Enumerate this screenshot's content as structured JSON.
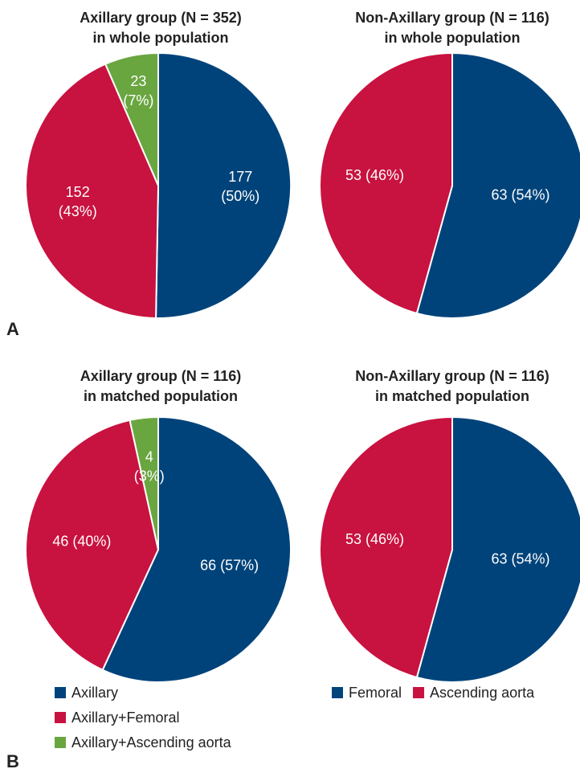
{
  "panels": {
    "a": "A",
    "b": "B"
  },
  "colors": {
    "blue": "#00437a",
    "red": "#c8123f",
    "green": "#6aa640",
    "edge": "#ffffff"
  },
  "chart_data": [
    {
      "type": "pie",
      "title": "Axillary group (N = 352)",
      "subtitle": "in whole population",
      "slices": [
        {
          "label": "Axillary",
          "value": 177,
          "display": [
            "177",
            "(50%)"
          ],
          "color": "#00437a"
        },
        {
          "label": "Axillary+Femoral",
          "value": 152,
          "display": [
            "152",
            "(43%)"
          ],
          "color": "#c8123f"
        },
        {
          "label": "Axillary+Ascending aorta",
          "value": 23,
          "display": [
            "23",
            "(7%)"
          ],
          "color": "#6aa640"
        }
      ]
    },
    {
      "type": "pie",
      "title": "Non-Axillary group (N = 116)",
      "subtitle": "in whole population",
      "slices": [
        {
          "label": "Femoral",
          "value": 63,
          "display": [
            "63 (54%)"
          ],
          "color": "#00437a"
        },
        {
          "label": "Ascending aorta",
          "value": 53,
          "display": [
            "53 (46%)"
          ],
          "color": "#c8123f"
        }
      ]
    },
    {
      "type": "pie",
      "title": "Axillary group (N = 116)",
      "subtitle": "in matched population",
      "slices": [
        {
          "label": "Axillary",
          "value": 66,
          "display": [
            "66 (57%)"
          ],
          "color": "#00437a"
        },
        {
          "label": "Axillary+Femoral",
          "value": 46,
          "display": [
            "46 (40%)"
          ],
          "color": "#c8123f"
        },
        {
          "label": "Axillary+Ascending aorta",
          "value": 4,
          "display": [
            "4",
            "(3%)"
          ],
          "color": "#6aa640"
        }
      ]
    },
    {
      "type": "pie",
      "title": "Non-Axillary group (N = 116)",
      "subtitle": "in matched population",
      "slices": [
        {
          "label": "Femoral",
          "value": 63,
          "display": [
            "63 (54%)"
          ],
          "color": "#00437a"
        },
        {
          "label": "Ascending aorta",
          "value": 53,
          "display": [
            "53 (46%)"
          ],
          "color": "#c8123f"
        }
      ]
    }
  ],
  "legends": {
    "axillary": [
      {
        "label": "Axillary",
        "color": "#00437a"
      },
      {
        "label": "Axillary+Femoral",
        "color": "#c8123f"
      },
      {
        "label": "Axillary+Ascending aorta",
        "color": "#6aa640"
      }
    ],
    "non_axillary": [
      {
        "label": "Femoral",
        "color": "#00437a"
      },
      {
        "label": "Ascending aorta",
        "color": "#c8123f"
      }
    ]
  }
}
